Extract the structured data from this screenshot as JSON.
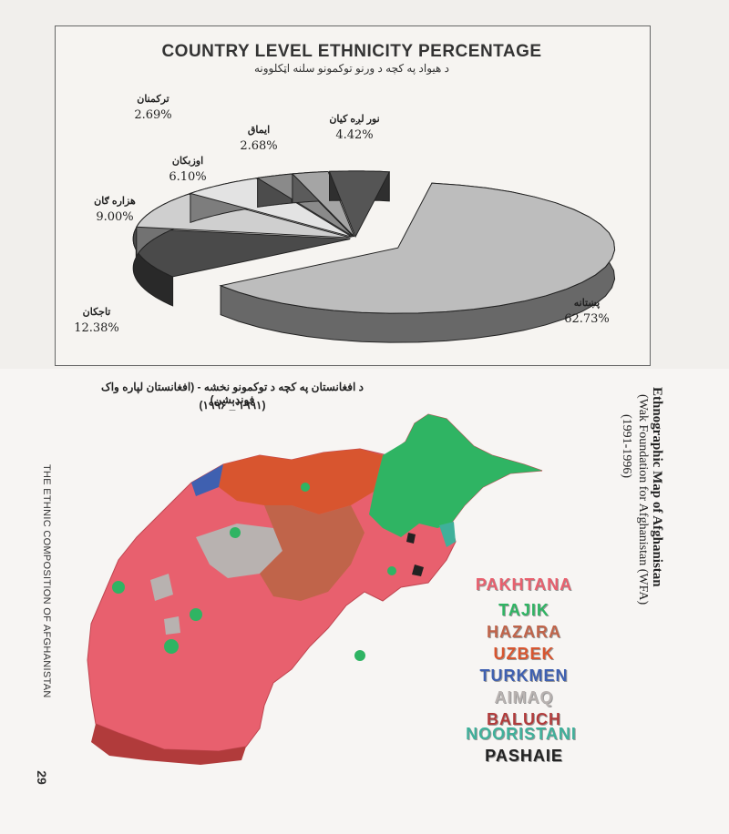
{
  "chart_data": {
    "type": "pie",
    "title": "COUNTRY LEVEL ETHNICITY PERCENTAGE",
    "subtitle": "د هیواد په کچه د ورنو توکمونو سلنه اټکلوونه",
    "slices": [
      {
        "name": "پښتانه",
        "value": 62.73,
        "label": "62.73%",
        "color": "#bdbdbd"
      },
      {
        "name": "تاجکان",
        "value": 12.38,
        "label": "12.38%",
        "color": "#4a4a4a"
      },
      {
        "name": "هزاره ګان",
        "value": 9.0,
        "label": "9.00%",
        "color": "#cfcfcf"
      },
      {
        "name": "اوزبکان",
        "value": 6.1,
        "label": "6.10%",
        "color": "#e3e3e3"
      },
      {
        "name": "ترکمنان",
        "value": 2.69,
        "label": "2.69%",
        "color": "#8a8a8a"
      },
      {
        "name": "ایماق",
        "value": 2.68,
        "label": "2.68%",
        "color": "#a5a5a5"
      },
      {
        "name": "نور لږه کیان",
        "value": 4.42,
        "label": "4.42%",
        "color": "#555555"
      }
    ]
  },
  "map": {
    "title_line1": "د افغانستان په کچه د توکمونو نخشه - (افغانستان لپاره واک فونډېشن)",
    "title_line2": "(۱۹۹۱ _ ۱۹۹۶)",
    "side_caption": "THE ETHNIC COMPOSITION OF AFGHANISTAN",
    "page_number": "29",
    "right_title": "Ethnographic Map of Afghanistan",
    "right_sub1": "(Wak Foundation for Afghanistan (WFA)",
    "right_sub2": "(1991-1996)",
    "legend": [
      {
        "label": "PAKHTANA",
        "color": "#e8606e"
      },
      {
        "label": "TAJIK",
        "color": "#2fb463"
      },
      {
        "label": "HAZARA",
        "color": "#c0644a"
      },
      {
        "label": "UZBEK",
        "color": "#d8552f"
      },
      {
        "label": "TURKMEN",
        "color": "#3f60b0"
      },
      {
        "label": "AIMAQ",
        "color": "#b8b2b0"
      },
      {
        "label": "BALUCH",
        "color": "#b13b3b"
      },
      {
        "label": "NOORISTANI",
        "color": "#3fb09a"
      },
      {
        "label": "PASHAIE",
        "color": "#222222"
      }
    ]
  }
}
